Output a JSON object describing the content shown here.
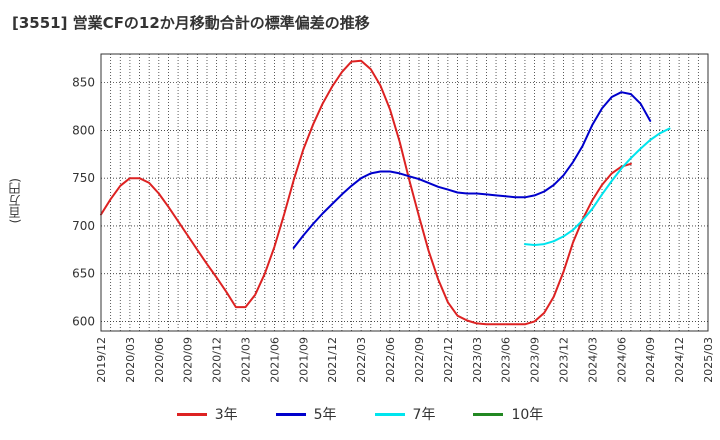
{
  "title": "[3551]  営業CFの12か月移動合計の標準偏差の推移",
  "chart_data": {
    "type": "line",
    "ylabel": "(百万円)",
    "ylim": [
      590,
      880
    ],
    "yticks": [
      600,
      650,
      700,
      750,
      800,
      850
    ],
    "xticks": [
      "2019/12",
      "2020/03",
      "2020/06",
      "2020/09",
      "2020/12",
      "2021/03",
      "2021/06",
      "2021/09",
      "2021/12",
      "2022/03",
      "2022/06",
      "2022/09",
      "2022/12",
      "2023/03",
      "2023/06",
      "2023/09",
      "2023/12",
      "2024/03",
      "2024/06",
      "2024/09",
      "2024/12",
      "2025/03"
    ],
    "grid": true,
    "legend_position": "bottom",
    "series": [
      {
        "name": "3年",
        "color": "#dd2222",
        "start": "2019/12",
        "values": [
          712,
          728,
          742,
          750,
          750,
          745,
          734,
          720,
          705,
          690,
          675,
          660,
          646,
          631,
          615,
          615,
          628,
          650,
          678,
          712,
          748,
          780,
          806,
          828,
          846,
          861,
          872,
          873,
          864,
          847,
          822,
          788,
          748,
          710,
          674,
          644,
          620,
          606,
          601,
          598,
          597,
          597,
          597,
          597,
          597,
          600,
          609,
          626,
          652,
          683,
          707,
          727,
          743,
          755,
          762,
          765
        ]
      },
      {
        "name": "5年",
        "color": "#0000cc",
        "start": "2021/08",
        "values": [
          677,
          690,
          702,
          713,
          723,
          733,
          742,
          750,
          755,
          757,
          757,
          755,
          752,
          749,
          745,
          741,
          738,
          735,
          734,
          734,
          733,
          732,
          731,
          730,
          730,
          732,
          736,
          743,
          753,
          767,
          784,
          806,
          823,
          835,
          840,
          838,
          828,
          810
        ]
      },
      {
        "name": "7年",
        "color": "#00e5ee",
        "start": "2023/08",
        "values": [
          681,
          680,
          681,
          684,
          689,
          696,
          706,
          718,
          733,
          747,
          760,
          771,
          781,
          790,
          797,
          802
        ]
      },
      {
        "name": "10年",
        "color": "#228822",
        "start": "2019/12",
        "values": []
      }
    ]
  }
}
